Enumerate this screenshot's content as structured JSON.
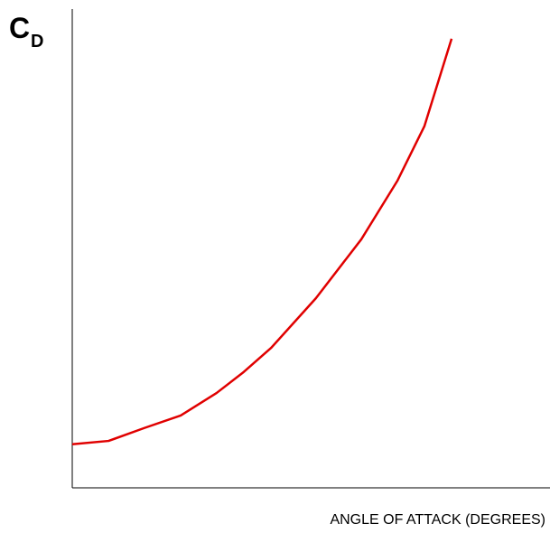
{
  "chart_data": {
    "type": "line",
    "ylabel": "C",
    "ylabel_subscript": "D",
    "xlabel": "ANGLE OF ATTACK (DEGREES)",
    "x": [
      0,
      7.6,
      15.1,
      22.7,
      30.2,
      35.9,
      41.6,
      51.0,
      60.5,
      68.1,
      73.7,
      79.4
    ],
    "series": [
      {
        "color": "#e00000",
        "values": [
          9.1,
          9.8,
          12.5,
          15.1,
          19.8,
          24.2,
          29.2,
          39.6,
          51.9,
          64.2,
          75.5,
          93.8
        ]
      }
    ],
    "xlim": [
      0,
      100
    ],
    "ylim": [
      0,
      100
    ]
  }
}
